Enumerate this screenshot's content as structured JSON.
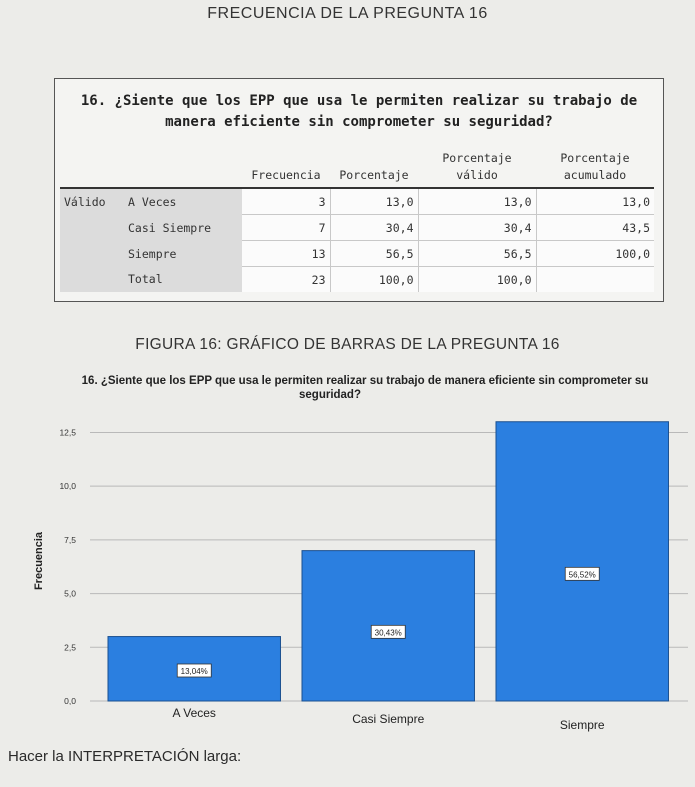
{
  "page": {
    "heading": "FRECUENCIA DE LA PREGUNTA 16",
    "table_title_line1": "16. ¿Siente que los EPP que usa le permiten realizar su trabajo de",
    "table_title_line2": "manera eficiente sin comprometer su seguridad?",
    "figure_caption": "FIGURA 16: GRÁFICO DE BARRAS DE LA PREGUNTA 16",
    "footer_text": "Hacer la INTERPRETACIÓN larga:"
  },
  "table": {
    "headers": {
      "frecuencia": "Frecuencia",
      "porcentaje": "Porcentaje",
      "valido_l1": "Porcentaje",
      "valido_l2": "válido",
      "acum_l1": "Porcentaje",
      "acum_l2": "acumulado"
    },
    "group_label": "Válido",
    "rows": [
      {
        "label": "A Veces",
        "frecuencia": "3",
        "porcentaje": "13,0",
        "valido": "13,0",
        "acumulado": "13,0"
      },
      {
        "label": "Casi Siempre",
        "frecuencia": "7",
        "porcentaje": "30,4",
        "valido": "30,4",
        "acumulado": "43,5"
      },
      {
        "label": "Siempre",
        "frecuencia": "13",
        "porcentaje": "56,5",
        "valido": "56,5",
        "acumulado": "100,0"
      },
      {
        "label": "Total",
        "frecuencia": "23",
        "porcentaje": "100,0",
        "valido": "100,0",
        "acumulado": ""
      }
    ]
  },
  "chart_data": {
    "type": "bar",
    "title_line1": "16. ¿Siente que los EPP que usa le permiten realizar su trabajo de manera eficiente sin comprometer su",
    "title_line2": "seguridad?",
    "categories": [
      "A Veces",
      "Casi Siempre",
      "Siempre"
    ],
    "values": [
      3,
      7,
      13
    ],
    "data_labels": [
      "13,04%",
      "30,43%",
      "56,52%"
    ],
    "ylabel": "Frecuencia",
    "yticks": [
      "0,0",
      "2,5",
      "5,0",
      "7,5",
      "10,0",
      "12,5"
    ],
    "ylim": [
      0,
      13.5
    ],
    "grid": true,
    "bar_color": "#2b7fe0",
    "bar_edge_color": "#1a4f8f"
  }
}
